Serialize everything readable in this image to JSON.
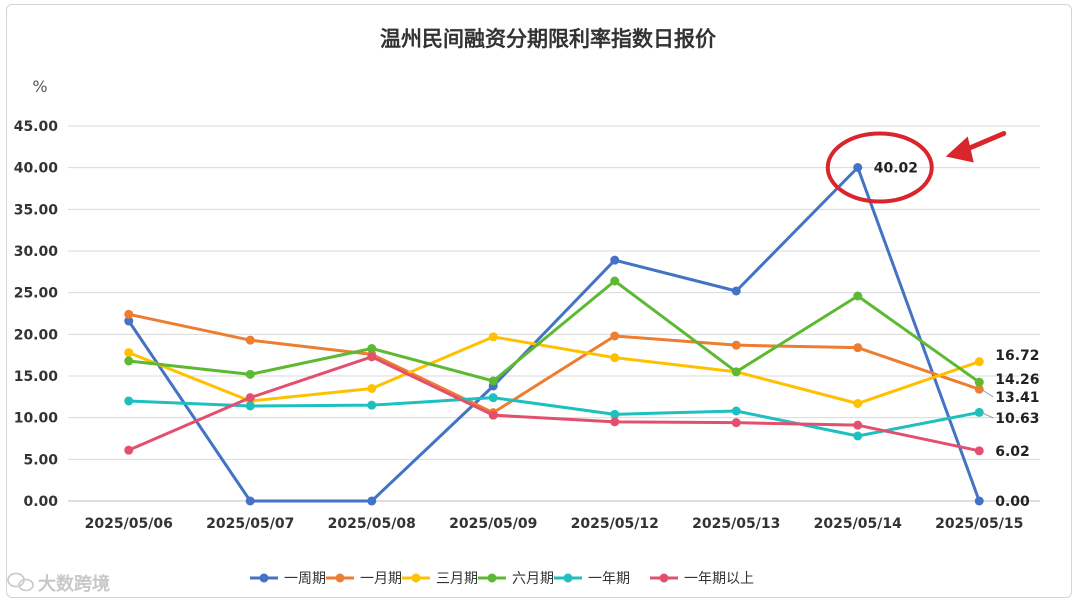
{
  "chart_data": {
    "type": "line",
    "title": "温州民间融资分期限利率指数日报价",
    "ylabel": "%",
    "xlabel": "",
    "ylim": [
      0,
      45
    ],
    "yticks": [
      "0.00",
      "5.00",
      "10.00",
      "15.00",
      "20.00",
      "25.00",
      "30.00",
      "35.00",
      "40.00",
      "45.00"
    ],
    "categories": [
      "2025/05/06",
      "2025/05/07",
      "2025/05/08",
      "2025/05/09",
      "2025/05/12",
      "2025/05/13",
      "2025/05/14",
      "2025/05/15"
    ],
    "grid": true,
    "legend_position": "bottom",
    "series": [
      {
        "name": "一周期",
        "color": "#4472c4",
        "values": [
          21.6,
          0.0,
          0.0,
          13.8,
          28.9,
          25.2,
          40.02,
          0.0
        ]
      },
      {
        "name": "一月期",
        "color": "#ed7d31",
        "values": [
          22.4,
          19.3,
          17.6,
          10.6,
          19.8,
          18.7,
          18.4,
          13.41
        ]
      },
      {
        "name": "三月期",
        "color": "#ffc000",
        "values": [
          17.8,
          12.0,
          13.5,
          19.7,
          17.2,
          15.5,
          11.7,
          16.72
        ]
      },
      {
        "name": "六月期",
        "color": "#5eb932",
        "values": [
          16.8,
          15.2,
          18.3,
          14.4,
          26.4,
          15.5,
          24.6,
          14.26
        ]
      },
      {
        "name": "一年期",
        "color": "#1dbfbf",
        "values": [
          12.0,
          11.4,
          11.5,
          12.4,
          10.4,
          10.8,
          7.8,
          10.63
        ]
      },
      {
        "name": "一年期以上",
        "color": "#e3506e",
        "values": [
          6.1,
          12.4,
          17.3,
          10.3,
          9.5,
          9.4,
          9.1,
          6.02
        ]
      }
    ],
    "data_labels": [
      {
        "series": "一周期",
        "index": 6,
        "text": "40.02"
      },
      {
        "series": "一周期",
        "index": 7,
        "text": "0.00"
      },
      {
        "series": "一月期",
        "index": 7,
        "text": "13.41"
      },
      {
        "series": "三月期",
        "index": 7,
        "text": "16.72"
      },
      {
        "series": "六月期",
        "index": 7,
        "text": "14.26"
      },
      {
        "series": "一年期",
        "index": 7,
        "text": "10.63"
      },
      {
        "series": "一年期以上",
        "index": 7,
        "text": "6.02"
      }
    ],
    "annotation": {
      "type": "red-circle-with-arrow",
      "target": "40.02",
      "color": "#d9262c"
    }
  },
  "watermark": {
    "text": "大数跨境",
    "icon": "wechat-icon"
  }
}
